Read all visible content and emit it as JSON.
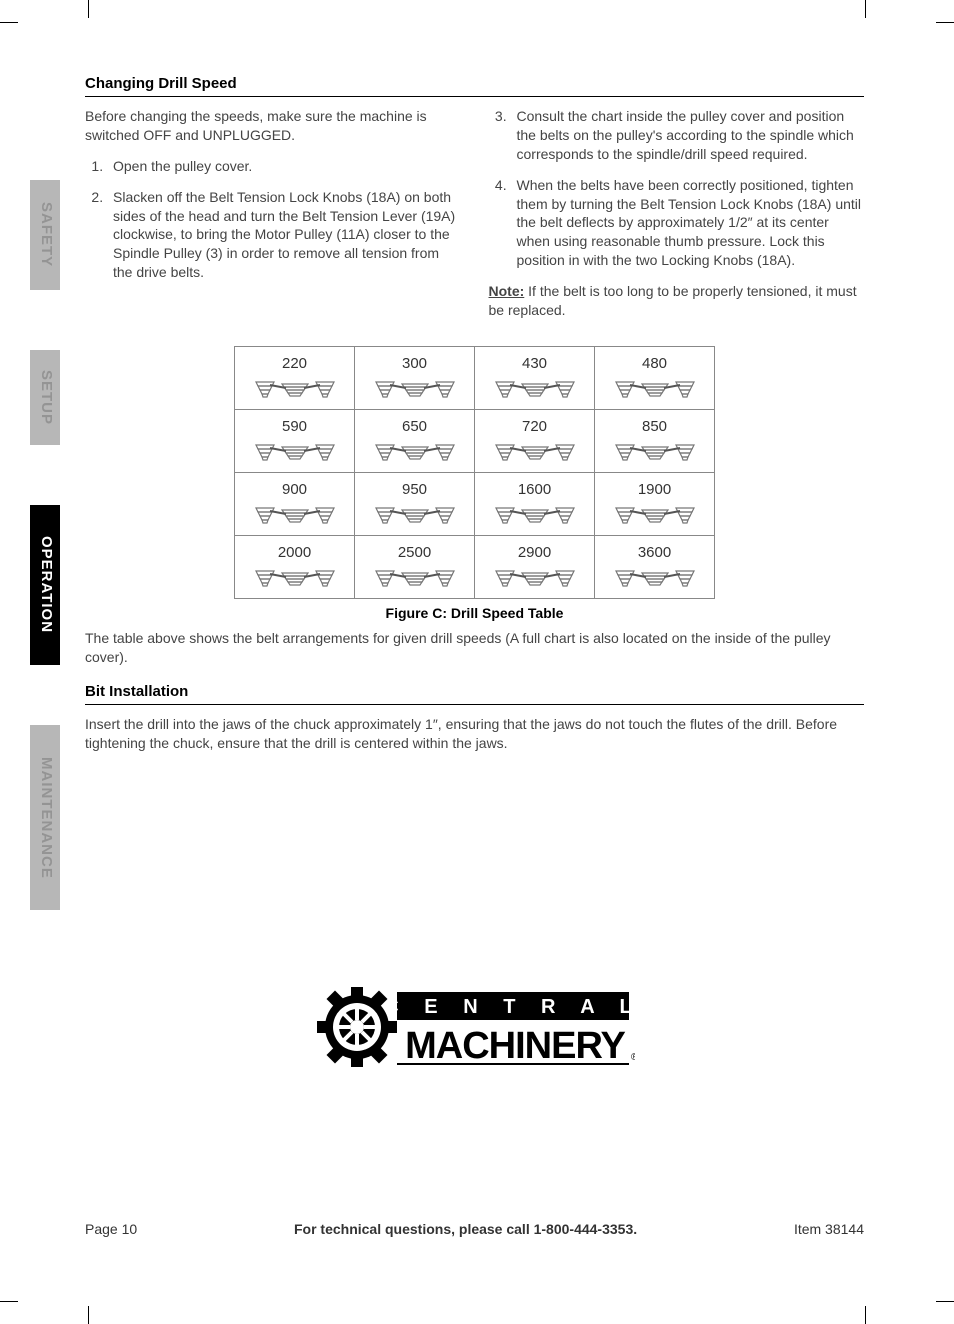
{
  "sidebar": {
    "safety": "SAFETY",
    "setup": "SETUP",
    "operation": "OPERATION",
    "maintenance": "MAINTENANCE"
  },
  "sections": {
    "changing_speed": {
      "heading": "Changing Drill Speed",
      "intro": "Before changing the speeds, make sure the machine is switched OFF and UNPLUGGED.",
      "step1": "Open the pulley cover.",
      "step2": "Slacken off the Belt Tension Lock Knobs (18A) on both sides of the head and turn the Belt Tension Lever (19A) clockwise, to bring the Motor Pulley (11A) closer to the Spindle Pulley (3) in order to remove all tension from the drive belts.",
      "step3": "Consult the chart inside the pulley cover and position the belts on the pulley's according to the spindle which corresponds to the spindle/drill speed required.",
      "step4": "When the belts have been correctly positioned, tighten them by turning the Belt Tension Lock Knobs (18A) until the belt deflects by approximately 1/2″ at its center when using reasonable thumb pressure.  Lock this position in with the two Locking Knobs (18A).",
      "note_label": "Note:",
      "note_text": " If the belt is too long to be properly tensioned, it must be replaced."
    },
    "speed_table": {
      "caption": "Figure C:  Drill Speed Table",
      "rows": [
        [
          "220",
          "300",
          "430",
          "480"
        ],
        [
          "590",
          "650",
          "720",
          "850"
        ],
        [
          "900",
          "950",
          "1600",
          "1900"
        ],
        [
          "2000",
          "2500",
          "2900",
          "3600"
        ]
      ],
      "below_text": "The table above shows the belt arrangements for given drill speeds (A full chart is also located on the inside of the pulley cover)."
    },
    "bit_install": {
      "heading": "Bit Installation",
      "text": "Insert the drill into the jaws of the chuck approximately 1″, ensuring that the jaws do not touch the flutes of the drill.  Before tightening the chuck, ensure that the drill is centered within the jaws."
    }
  },
  "logo": {
    "top": "C E N T R A L",
    "bottom": "MACHINERY"
  },
  "footer": {
    "page": "Page 10",
    "center": "For technical questions, please call 1-800-444-3353.",
    "item": "Item 38144"
  },
  "colors": {
    "tab_gray_bg": "#b7b7b7",
    "tab_gray_text": "#949494",
    "tab_black_bg": "#000000",
    "text": "#333333",
    "border": "#888888"
  }
}
